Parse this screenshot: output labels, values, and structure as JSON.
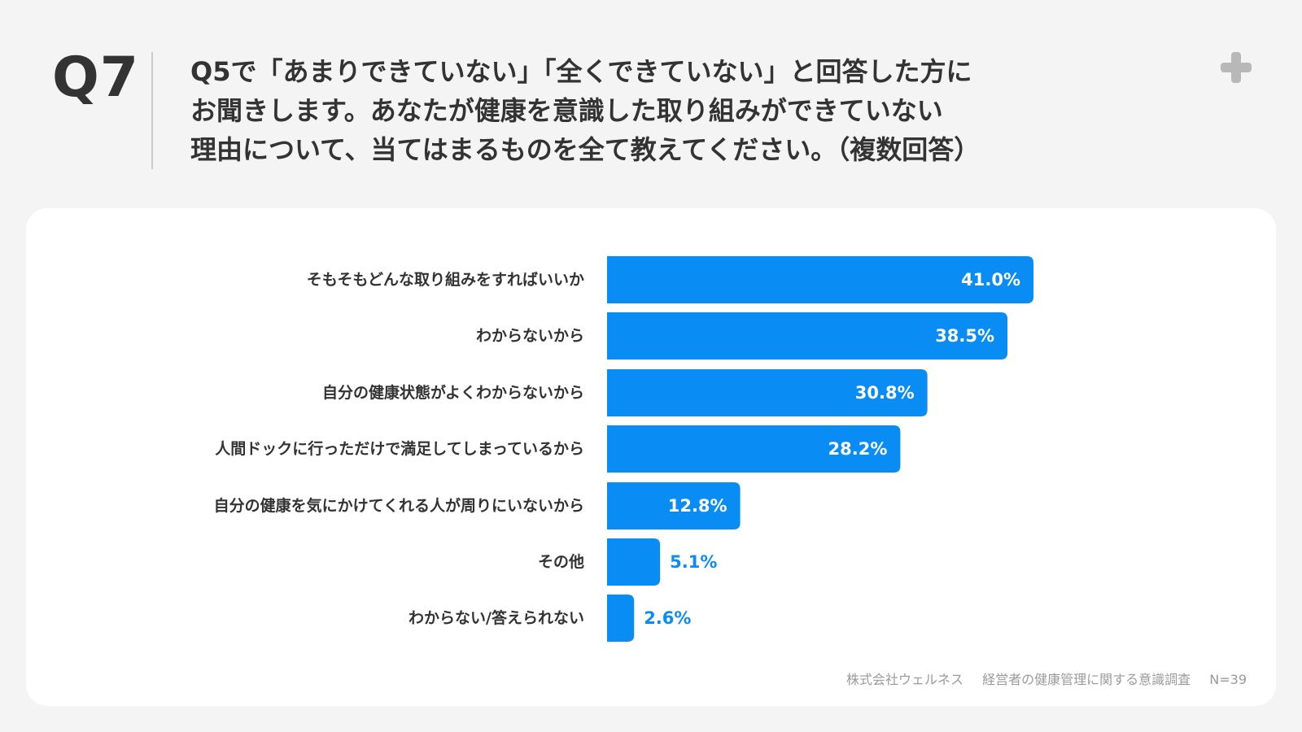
{
  "header": {
    "question_no": "Q7",
    "question_lines": [
      "Q5で「あまりできていない」「全くできていない」と回答した方に",
      "お聞きします。あなたが健康を意識した取り組みができていない",
      "理由について、当てはまるものを全て教えてください。（複数回答）"
    ],
    "corner_icon": "plus-icon"
  },
  "colors": {
    "bar": "#0a8cf5",
    "label_inside": "#ffffff",
    "label_outside": "#0a8cf5",
    "category_text": "#333333"
  },
  "chart_data": {
    "type": "bar",
    "orientation": "horizontal",
    "categories": [
      "そもそもどんな取り組みをすればいいか",
      "わからないから",
      "自分の健康状態がよくわからないから",
      "人間ドックに行っただけで満足してしまっているから",
      "自分の健康を気にかけてくれる人が周りにいないから",
      "その他",
      "わからない/答えられない"
    ],
    "values": [
      41.0,
      38.5,
      30.8,
      28.2,
      12.8,
      5.1,
      2.6
    ],
    "value_labels": [
      "41.0%",
      "38.5%",
      "30.8%",
      "28.2%",
      "12.8%",
      "5.1%",
      "2.6%"
    ],
    "unit": "%",
    "xlim": [
      0,
      41.0
    ],
    "grid": false,
    "legend": "none"
  },
  "footer": {
    "source_company": "株式会社ウェルネス",
    "survey_title": "経営者の健康管理に関する意識調査",
    "sample_size": "N=39"
  }
}
